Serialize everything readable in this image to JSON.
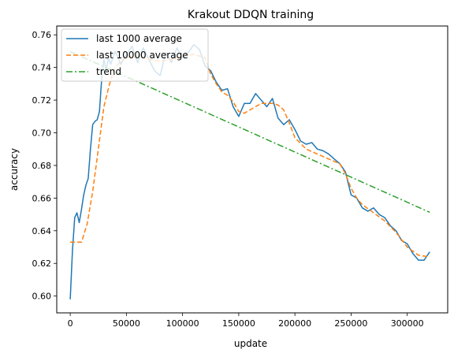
{
  "chart_data": {
    "type": "line",
    "title": "Krakout DDQN training",
    "xlabel": "update",
    "ylabel": "accuracy",
    "xlim": [
      -12000,
      336000
    ],
    "ylim": [
      0.5897,
      0.7654
    ],
    "x_ticks": [
      0,
      50000,
      100000,
      150000,
      200000,
      250000,
      300000
    ],
    "x_tick_labels": [
      "0",
      "50000",
      "100000",
      "150000",
      "200000",
      "250000",
      "300000"
    ],
    "y_ticks": [
      0.6,
      0.62,
      0.64,
      0.66,
      0.68,
      0.7,
      0.72,
      0.74,
      0.76
    ],
    "y_tick_labels": [
      "0.60",
      "0.62",
      "0.64",
      "0.66",
      "0.68",
      "0.70",
      "0.72",
      "0.74",
      "0.76"
    ],
    "grid": false,
    "legend_position": "top-left",
    "series": [
      {
        "name": "last 1000 average",
        "color": "#1f77b4",
        "style": "solid",
        "x": [
          0,
          2000,
          4000,
          6000,
          8000,
          10000,
          12000,
          14000,
          16000,
          18000,
          20000,
          22000,
          24000,
          26000,
          28000,
          30000,
          32000,
          34000,
          36000,
          40000,
          45000,
          50000,
          55000,
          60000,
          65000,
          70000,
          75000,
          80000,
          85000,
          90000,
          95000,
          100000,
          105000,
          110000,
          115000,
          120000,
          125000,
          130000,
          135000,
          140000,
          145000,
          150000,
          155000,
          160000,
          165000,
          170000,
          175000,
          180000,
          185000,
          190000,
          195000,
          200000,
          205000,
          210000,
          215000,
          220000,
          225000,
          230000,
          235000,
          240000,
          245000,
          250000,
          255000,
          260000,
          265000,
          270000,
          275000,
          280000,
          285000,
          290000,
          295000,
          300000,
          305000,
          310000,
          315000,
          320000
        ],
        "y": [
          0.598,
          0.628,
          0.648,
          0.651,
          0.645,
          0.653,
          0.662,
          0.668,
          0.672,
          0.69,
          0.705,
          0.707,
          0.708,
          0.713,
          0.733,
          0.745,
          0.738,
          0.746,
          0.742,
          0.75,
          0.742,
          0.748,
          0.753,
          0.743,
          0.752,
          0.745,
          0.738,
          0.735,
          0.749,
          0.743,
          0.752,
          0.746,
          0.749,
          0.754,
          0.751,
          0.741,
          0.738,
          0.731,
          0.726,
          0.727,
          0.716,
          0.71,
          0.718,
          0.718,
          0.724,
          0.72,
          0.716,
          0.721,
          0.709,
          0.705,
          0.708,
          0.702,
          0.695,
          0.693,
          0.694,
          0.69,
          0.689,
          0.687,
          0.684,
          0.681,
          0.676,
          0.662,
          0.66,
          0.654,
          0.652,
          0.654,
          0.65,
          0.648,
          0.643,
          0.64,
          0.634,
          0.632,
          0.626,
          0.622,
          0.622,
          0.627
        ]
      },
      {
        "name": "last 10000 average",
        "color": "#ff7f0e",
        "style": "dashed",
        "x": [
          0,
          5000,
          10000,
          15000,
          20000,
          25000,
          30000,
          35000,
          40000,
          45000,
          50000,
          55000,
          60000,
          70000,
          80000,
          90000,
          100000,
          110000,
          120000,
          125000,
          130000,
          135000,
          140000,
          145000,
          150000,
          155000,
          160000,
          165000,
          170000,
          175000,
          180000,
          185000,
          190000,
          195000,
          200000,
          210000,
          220000,
          230000,
          240000,
          245000,
          250000,
          255000,
          260000,
          270000,
          280000,
          290000,
          300000,
          310000,
          320000
        ],
        "y": [
          0.633,
          0.633,
          0.633,
          0.644,
          0.664,
          0.69,
          0.716,
          0.73,
          0.74,
          0.744,
          0.746,
          0.747,
          0.747,
          0.745,
          0.744,
          0.745,
          0.747,
          0.748,
          0.746,
          0.736,
          0.73,
          0.725,
          0.723,
          0.719,
          0.713,
          0.712,
          0.714,
          0.716,
          0.718,
          0.718,
          0.718,
          0.717,
          0.714,
          0.706,
          0.697,
          0.69,
          0.687,
          0.684,
          0.681,
          0.675,
          0.666,
          0.66,
          0.656,
          0.651,
          0.646,
          0.639,
          0.63,
          0.625,
          0.624
        ]
      },
      {
        "name": "trend",
        "color": "#2ca02c",
        "style": "dashdot",
        "x": [
          0,
          320000
        ],
        "y": [
          0.7497,
          0.6513
        ]
      }
    ]
  }
}
